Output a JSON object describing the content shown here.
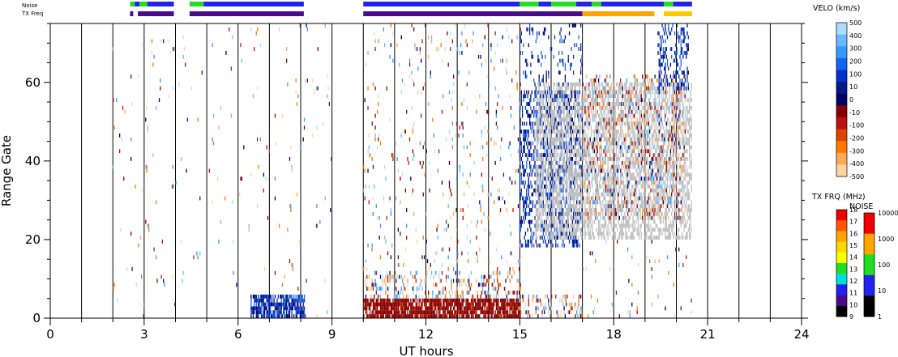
{
  "chart_data": {
    "type": "heatmap",
    "xlabel": "UT hours",
    "ylabel": "Range Gate",
    "xlim": [
      0,
      24
    ],
    "ylim": [
      0,
      75
    ],
    "x_ticks": [
      "0",
      "3",
      "6",
      "9",
      "12",
      "15",
      "18",
      "21",
      "24"
    ],
    "x_tick_values": [
      0,
      3,
      6,
      9,
      12,
      15,
      18,
      21,
      24
    ],
    "y_ticks": [
      "0",
      "20",
      "40",
      "60"
    ],
    "y_tick_values": [
      0,
      20,
      40,
      60
    ],
    "vertical_gridlines_every_hours": 1,
    "top_strips": [
      {
        "label": "Noise"
      },
      {
        "label": "TX Freq"
      }
    ],
    "noise_strip": [
      {
        "start": 2.55,
        "end": 2.7,
        "color": "#22dd22"
      },
      {
        "start": 2.7,
        "end": 2.85,
        "color": "#2222ee"
      },
      {
        "start": 2.85,
        "end": 3.1,
        "color": "#22dd22"
      },
      {
        "start": 3.1,
        "end": 3.95,
        "color": "#2222ee"
      },
      {
        "start": 4.45,
        "end": 4.9,
        "color": "#22dd22"
      },
      {
        "start": 4.9,
        "end": 8.1,
        "color": "#2222ee"
      },
      {
        "start": 10.0,
        "end": 15.0,
        "color": "#2222ee"
      },
      {
        "start": 15.0,
        "end": 15.6,
        "color": "#22dd22"
      },
      {
        "start": 15.6,
        "end": 16.0,
        "color": "#2222ee"
      },
      {
        "start": 16.0,
        "end": 16.8,
        "color": "#22dd22"
      },
      {
        "start": 16.8,
        "end": 17.3,
        "color": "#2222ee"
      },
      {
        "start": 17.3,
        "end": 17.6,
        "color": "#22dd22"
      },
      {
        "start": 17.6,
        "end": 19.6,
        "color": "#2222ee"
      },
      {
        "start": 19.6,
        "end": 19.9,
        "color": "#22dd22"
      },
      {
        "start": 19.9,
        "end": 20.5,
        "color": "#2222ee"
      }
    ],
    "txfreq_strip": [
      {
        "start": 2.55,
        "end": 2.65,
        "color": "#4b0a8c"
      },
      {
        "start": 2.8,
        "end": 3.95,
        "color": "#4b0a8c"
      },
      {
        "start": 4.45,
        "end": 8.1,
        "color": "#4b0a8c"
      },
      {
        "start": 10.0,
        "end": 17.0,
        "color": "#4b0a8c"
      },
      {
        "start": 17.0,
        "end": 19.3,
        "color": "#ffa500"
      },
      {
        "start": 19.6,
        "end": 20.5,
        "color": "#ffc800"
      }
    ],
    "scatter_clusters": [
      {
        "t0": 6.4,
        "t1": 8.1,
        "r0": 0,
        "r1": 6,
        "density": 0.75,
        "palette": "pos"
      },
      {
        "t0": 10.0,
        "t1": 15.0,
        "r0": 0,
        "r1": 5,
        "density": 0.85,
        "palette": "neg"
      },
      {
        "t0": 10.0,
        "t1": 15.0,
        "r0": 5,
        "r1": 12,
        "density": 0.25,
        "palette": "mix"
      },
      {
        "t0": 15.0,
        "t1": 17.0,
        "r0": 0,
        "r1": 6,
        "density": 0.25,
        "palette": "mix"
      },
      {
        "t0": 15.0,
        "t1": 17.0,
        "r0": 18,
        "r1": 58,
        "density": 0.35,
        "palette": "pos"
      },
      {
        "t0": 15.5,
        "t1": 20.5,
        "r0": 20,
        "r1": 60,
        "density": 0.55,
        "palette": "gray"
      },
      {
        "t0": 17.0,
        "t1": 20.3,
        "r0": 25,
        "r1": 62,
        "density": 0.2,
        "palette": "mix"
      },
      {
        "t0": 19.4,
        "t1": 20.4,
        "r0": 58,
        "r1": 75,
        "density": 0.35,
        "palette": "pos"
      },
      {
        "t0": 2.0,
        "t1": 9.0,
        "r0": 0,
        "r1": 75,
        "density": 0.012,
        "palette": "mix"
      },
      {
        "t0": 10.0,
        "t1": 15.0,
        "r0": 12,
        "r1": 75,
        "density": 0.04,
        "palette": "mix"
      },
      {
        "t0": 15.0,
        "t1": 17.0,
        "r0": 55,
        "r1": 75,
        "density": 0.1,
        "palette": "pos"
      },
      {
        "t0": 17.0,
        "t1": 20.5,
        "r0": 0,
        "r1": 20,
        "density": 0.03,
        "palette": "mix"
      }
    ],
    "colorbars": {
      "velocity": {
        "title": "VELO (km/s)",
        "labels": [
          "500",
          "400",
          "300",
          "200",
          "100",
          "10",
          "0",
          "-10",
          "-100",
          "-200",
          "-300",
          "-400",
          "-500"
        ],
        "colors": [
          "#aaddff",
          "#66bbff",
          "#3399ff",
          "#1166ee",
          "#0033cc",
          "#001a88",
          "#000066",
          "#880000",
          "#bb1111",
          "#dd4400",
          "#ff7700",
          "#ffaa55",
          "#ffd3a0"
        ]
      },
      "txfreq": {
        "title": "TX FRQ (MHz)",
        "labels": [
          "18",
          "17",
          "16",
          "15",
          "14",
          "13",
          "12",
          "11",
          "10",
          "9"
        ],
        "colors": [
          "#ee0000",
          "#ff5500",
          "#ffa500",
          "#ffd700",
          "#ffff00",
          "#22dd22",
          "#00dddd",
          "#2222ee",
          "#4b0a8c",
          "#000000"
        ]
      },
      "noise": {
        "title": "NOISE",
        "labels": [
          "10000",
          "1000",
          "100",
          "10",
          "1"
        ],
        "colors": [
          "#ee0000",
          "#ffa500",
          "#22dd22",
          "#2222ee",
          "#000000"
        ]
      }
    }
  }
}
